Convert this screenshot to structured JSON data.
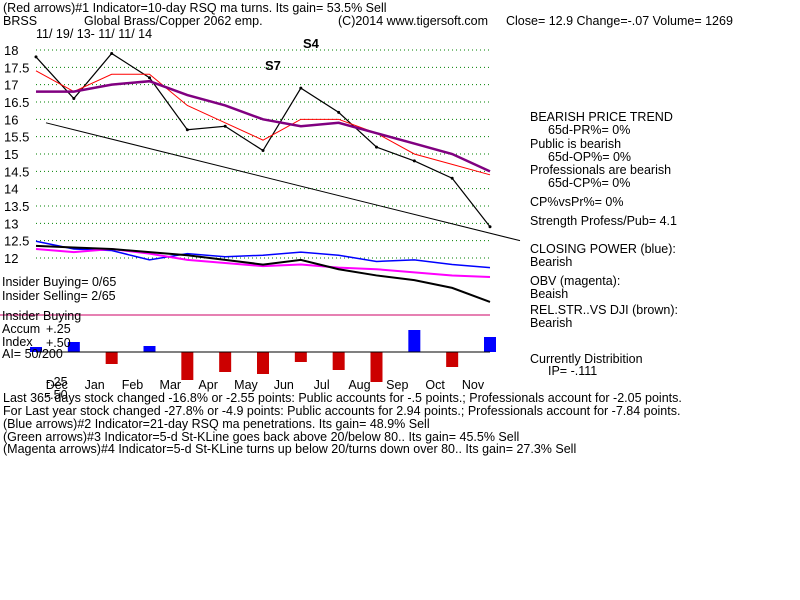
{
  "header": {
    "indicator1": "(Red arrows)#1 Indicator=10-day RSQ ma turns.  Its gain= 53.5% Sell",
    "symbol": "BRSS",
    "company": "Global Brass/Copper 2062 emp.",
    "copyright": "(C)2014 www.tigersoft.com",
    "quote": "Close=  12.9  Change=-.07 Volume= 1269",
    "date_range": "11/ 19/ 13- 11/ 11/ 14"
  },
  "chart_data": {
    "type": "line",
    "title": "BRSS  Global Brass/Copper 2062 emp.",
    "x": [
      "Nov",
      "Dec",
      "Jan",
      "Feb",
      "Mar",
      "Apr",
      "May",
      "Jun",
      "Jul",
      "Aug",
      "Sep",
      "Oct",
      "Nov"
    ],
    "month_labels": [
      "Dec",
      "Jan",
      "Feb",
      "Mar",
      "Apr",
      "May",
      "Jun",
      "Jul",
      "Aug",
      "Sep",
      "Oct",
      "Nov"
    ],
    "ylabels": [
      "18",
      "17.5",
      "17",
      "16.5",
      "16",
      "15.5",
      "15",
      "14.5",
      "14",
      "13.5",
      "13",
      "12.5",
      "12"
    ],
    "ylim": [
      12,
      18
    ],
    "grid": true,
    "series": [
      {
        "name": "Close",
        "values": [
          17.8,
          16.6,
          17.9,
          17.2,
          15.7,
          15.8,
          15.1,
          16.9,
          16.2,
          15.2,
          14.8,
          14.3,
          12.9
        ]
      },
      {
        "name": "21-day ma",
        "values": [
          17.4,
          16.8,
          17.3,
          17.3,
          16.4,
          15.9,
          15.4,
          16.0,
          16.0,
          15.6,
          15.0,
          14.7,
          14.4
        ]
      },
      {
        "name": "65-day ma",
        "values": [
          16.8,
          16.8,
          17.0,
          17.1,
          16.7,
          16.4,
          16.0,
          15.8,
          15.9,
          15.6,
          15.3,
          15.0,
          14.5
        ]
      }
    ],
    "annotations": [
      "S7",
      "S4"
    ],
    "price_trendline": {
      "start": 15.9,
      "end": 12.5
    }
  },
  "right_panel": {
    "trend_title": "BEARISH PRICE TREND",
    "pr": "65d-PR%= 0%",
    "public_title": "Public is bearish",
    "op": "65d-OP%= 0%",
    "prof_title": "Professionals are bearish",
    "cp": "65d-CP%= 0%",
    "cpvspr": "CP%vsPr%=  0%",
    "strength": "Strength Profess/Pub= 4.1",
    "closing_power_label": "CLOSING POWER (blue):",
    "closing_power_value": "Bearish",
    "obv_label": "OBV (magenta):",
    "obv_value": "Beaish",
    "relstr_label": "REL.STR..VS DJI (brown):",
    "relstr_value": "Bearish",
    "distribution_label": "Currently Distribition",
    "ip": "IP= -.111"
  },
  "left_labels": {
    "insider_buying": "Insider Buying= 0/65",
    "insider_selling": "Insider Selling= 2/65",
    "insider_buying2": "Insider Buying",
    "accum": "Accum",
    "plus25": "+.25",
    "plus50": "+.50",
    "index": "Index",
    "ai": "AI= 50/200",
    "minus25": "-.25",
    "minus50": "-.50"
  },
  "indicators": {
    "cp_series": [
      17.1,
      16.6,
      16.5,
      15.9,
      16.3,
      16.1,
      16.2,
      16.4,
      16.2,
      15.8,
      15.9,
      15.6,
      15.4
    ],
    "obv_series": [
      16.6,
      16.4,
      16.6,
      16.3,
      15.9,
      15.7,
      15.5,
      15.6,
      15.4,
      15.3,
      15.1,
      14.9,
      14.8
    ],
    "relstr_series": [
      16.8,
      16.7,
      16.6,
      16.4,
      16.2,
      15.9,
      15.6,
      15.9,
      15.3,
      14.9,
      14.6,
      14.1,
      13.2
    ],
    "accum_values": [
      0.05,
      0.1,
      -0.12,
      0.06,
      -0.28,
      -0.2,
      -0.22,
      -0.1,
      -0.18,
      -0.3,
      0.22,
      -0.15,
      0.15
    ]
  },
  "bottom_text": {
    "line1": "Last 365 days stock changed -16.8% or -2.55 points:  Public accounts for -.5 points.;  Professionals account for -2.05 points.",
    "line2": "For Last year stock changed -27.8% or -4.9 points:  Public accounts for  2.94 points.;  Professionals account for -7.84 points.",
    "line3": "(Blue arrows)#2 Indicator=21-day RSQ ma penetrations.  Its gain= 48.9% Sell",
    "line4": "(Green arrows)#3 Indicator=5-d St-KLine goes back above 20/below 80..  Its gain= 45.5% Sell",
    "line5": "(Magenta arrows)#4 Indicator=5-d St-KLine turns up below 20/turns down over 80..  Its gain= 27.3% Sell"
  },
  "colors": {
    "price": "#000000",
    "ma": "#ff0000",
    "ma65": "#800080",
    "closing_power": "#0000ff",
    "obv": "#ff00ff",
    "grid": "#008000",
    "accum_pos": "#0000ff",
    "accum_neg": "#cc0000"
  }
}
